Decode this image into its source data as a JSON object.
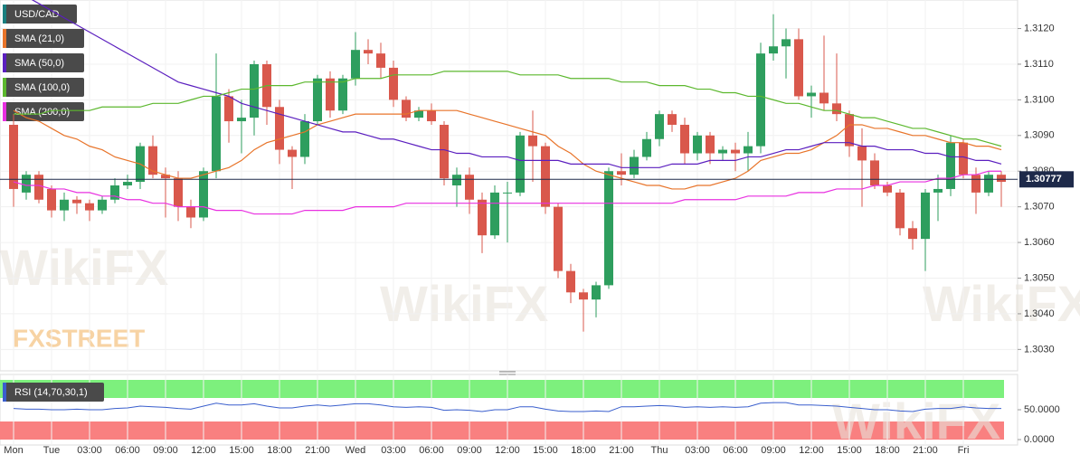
{
  "chart_data": [
    {
      "type": "candlestick",
      "categories": [
        "Mon",
        null,
        null,
        "Tue",
        null,
        null,
        "03:00",
        null,
        null,
        "06:00",
        null,
        null,
        "09:00",
        null,
        null,
        "12:00",
        null,
        null,
        "15:00",
        null,
        null,
        "18:00",
        null,
        null,
        "21:00",
        null,
        null,
        "Wed",
        null,
        null,
        "03:00",
        null,
        null,
        "06:00",
        null,
        null,
        "09:00",
        null,
        null,
        "12:00",
        null,
        null,
        "15:00",
        null,
        null,
        "18:00",
        null,
        null,
        "21:00",
        null,
        null,
        "Thu",
        null,
        null,
        "03:00",
        null,
        null,
        "06:00",
        null,
        null,
        "09:00",
        null,
        null,
        "12:00",
        null,
        null,
        "15:00",
        null,
        null,
        "18:00",
        null,
        null,
        "21:00",
        null,
        null,
        "Fri",
        null,
        null,
        null
      ],
      "candles": {
        "name": "USD/CAD",
        "up_color": "#2e9e5e",
        "down_color": "#d9584c",
        "open": [
          1.3093,
          1.3074,
          1.3079,
          1.3075,
          1.3069,
          1.3072,
          1.3071,
          1.3069,
          1.3072,
          1.3076,
          1.3077,
          1.3087,
          1.3079,
          1.3078,
          1.307,
          1.3067,
          1.308,
          1.3101,
          1.3094,
          1.3095,
          1.311,
          1.3098,
          1.3086,
          1.3084,
          1.3094,
          1.3106,
          1.3097,
          1.3106,
          1.3114,
          1.3113,
          1.3109,
          1.31,
          1.3095,
          1.3097,
          1.3093,
          1.3076,
          1.3079,
          1.3072,
          1.3062,
          1.3074,
          1.3074,
          1.309,
          1.3087,
          1.307,
          1.3052,
          1.3046,
          1.3044,
          1.3048,
          1.308,
          1.3079,
          1.3084,
          1.3089,
          1.3096,
          1.3093,
          1.3085,
          1.309,
          1.3085,
          1.3086,
          1.3085,
          1.3087,
          1.3113,
          1.3115,
          1.3117,
          1.3101,
          1.3102,
          1.3099,
          1.3096,
          1.3087,
          1.3083,
          1.3076,
          1.3074,
          1.3064,
          1.3061,
          1.3074,
          1.3075,
          1.3088,
          1.3079,
          1.3074,
          1.3079
        ],
        "high": [
          1.3096,
          1.308,
          1.308,
          1.3076,
          1.3074,
          1.3073,
          1.3072,
          1.3073,
          1.3078,
          1.3079,
          1.3088,
          1.309,
          1.3081,
          1.308,
          1.3072,
          1.3081,
          1.3113,
          1.3103,
          1.31,
          1.3111,
          1.3111,
          1.31,
          1.3087,
          1.3096,
          1.3107,
          1.3108,
          1.3107,
          1.3119,
          1.3117,
          1.3116,
          1.3111,
          1.3101,
          1.3098,
          1.3099,
          1.3094,
          1.3081,
          1.3081,
          1.3074,
          1.3076,
          1.3077,
          1.3091,
          1.3097,
          1.3088,
          1.3071,
          1.3054,
          1.3047,
          1.3049,
          1.3081,
          1.3085,
          1.3086,
          1.3091,
          1.3097,
          1.3097,
          1.3095,
          1.3091,
          1.3091,
          1.3087,
          1.3088,
          1.3091,
          1.3116,
          1.3124,
          1.312,
          1.312,
          1.3104,
          1.3118,
          1.3113,
          1.3097,
          1.3092,
          1.3085,
          1.3077,
          1.3075,
          1.3066,
          1.3075,
          1.3079,
          1.309,
          1.3089,
          1.3081,
          1.308,
          1.308
        ],
        "low": [
          1.307,
          1.3072,
          1.3071,
          1.3067,
          1.3066,
          1.3068,
          1.3066,
          1.3068,
          1.3071,
          1.3075,
          1.3075,
          1.3078,
          1.3067,
          1.3066,
          1.3064,
          1.3066,
          1.3078,
          1.3088,
          1.3085,
          1.309,
          1.3093,
          1.3082,
          1.3075,
          1.3082,
          1.3093,
          1.3095,
          1.3096,
          1.3104,
          1.311,
          1.3106,
          1.3098,
          1.3094,
          1.3094,
          1.3093,
          1.3076,
          1.307,
          1.3068,
          1.3057,
          1.3061,
          1.306,
          1.3073,
          1.3077,
          1.3068,
          1.305,
          1.3043,
          1.3035,
          1.3039,
          1.3047,
          1.3076,
          1.3078,
          1.3083,
          1.3087,
          1.3091,
          1.3082,
          1.3083,
          1.3082,
          1.3083,
          1.308,
          1.308,
          1.3085,
          1.3111,
          1.3106,
          1.31,
          1.3095,
          1.3097,
          1.3094,
          1.3084,
          1.307,
          1.3075,
          1.3073,
          1.3062,
          1.3058,
          1.3052,
          1.3066,
          1.3073,
          1.3078,
          1.3068,
          1.3073,
          1.307
        ],
        "close": [
          1.3075,
          1.3079,
          1.3072,
          1.3069,
          1.3072,
          1.3071,
          1.3069,
          1.3072,
          1.3076,
          1.3077,
          1.3087,
          1.3079,
          1.3078,
          1.307,
          1.3067,
          1.308,
          1.3101,
          1.3094,
          1.3095,
          1.311,
          1.3098,
          1.3086,
          1.3084,
          1.3094,
          1.3106,
          1.3097,
          1.3106,
          1.3114,
          1.3113,
          1.3109,
          1.31,
          1.3095,
          1.3097,
          1.3094,
          1.3078,
          1.3079,
          1.3072,
          1.3062,
          1.3074,
          1.3074,
          1.309,
          1.3087,
          1.307,
          1.3052,
          1.3046,
          1.3044,
          1.3048,
          1.308,
          1.3079,
          1.3084,
          1.3089,
          1.3096,
          1.3093,
          1.3085,
          1.309,
          1.3085,
          1.3086,
          1.3085,
          1.3087,
          1.3113,
          1.3115,
          1.3117,
          1.3101,
          1.3102,
          1.3099,
          1.3096,
          1.3087,
          1.3083,
          1.3076,
          1.3074,
          1.3064,
          1.3061,
          1.3074,
          1.3075,
          1.3088,
          1.3079,
          1.3074,
          1.3079,
          1.3077
        ]
      },
      "series": [
        {
          "name": "SMA (21,0)",
          "color": "#e8742a",
          "values": [
            1.3097,
            1.3095,
            1.3094,
            1.3092,
            1.309,
            1.3089,
            1.3087,
            1.3086,
            1.3084,
            1.3083,
            1.3082,
            1.308,
            1.3079,
            1.3078,
            1.3078,
            1.3079,
            1.308,
            1.3081,
            1.3083,
            1.3086,
            1.3088,
            1.3089,
            1.309,
            1.3091,
            1.3093,
            1.3094,
            1.3095,
            1.3096,
            1.3096,
            1.3096,
            1.3096,
            1.3096,
            1.3097,
            1.3097,
            1.3097,
            1.3097,
            1.3096,
            1.3095,
            1.3094,
            1.3093,
            1.3092,
            1.3091,
            1.309,
            1.3087,
            1.3085,
            1.3082,
            1.308,
            1.3079,
            1.3078,
            1.3077,
            1.3076,
            1.3076,
            1.3075,
            1.3075,
            1.3076,
            1.3076,
            1.3077,
            1.3078,
            1.308,
            1.3083,
            1.3084,
            1.3085,
            1.3085,
            1.3086,
            1.3088,
            1.309,
            1.3093,
            1.3093,
            1.3092,
            1.3092,
            1.3091,
            1.309,
            1.309,
            1.3089,
            1.3088,
            1.3088,
            1.3087,
            1.3087,
            1.3086
          ]
        },
        {
          "name": "SMA (50,0)",
          "color": "#5b1fbf",
          "values": [
            1.3131,
            1.3129,
            1.3127,
            1.3125,
            1.3123,
            1.3121,
            1.3119,
            1.3117,
            1.3115,
            1.3113,
            1.3111,
            1.3109,
            1.3107,
            1.3105,
            1.3104,
            1.3103,
            1.3102,
            1.3101,
            1.3099,
            1.3098,
            1.3097,
            1.3096,
            1.3095,
            1.3094,
            1.3093,
            1.3092,
            1.3091,
            1.3091,
            1.309,
            1.3089,
            1.3089,
            1.3088,
            1.3087,
            1.3086,
            1.3086,
            1.3085,
            1.3085,
            1.3084,
            1.3084,
            1.3084,
            1.3083,
            1.3083,
            1.3083,
            1.3083,
            1.3082,
            1.3082,
            1.3082,
            1.3082,
            1.3081,
            1.3081,
            1.3081,
            1.3081,
            1.3082,
            1.3082,
            1.3082,
            1.3083,
            1.3083,
            1.3083,
            1.3084,
            1.3084,
            1.3085,
            1.3086,
            1.3086,
            1.3087,
            1.3088,
            1.3088,
            1.3088,
            1.3087,
            1.3087,
            1.3086,
            1.3086,
            1.3086,
            1.3085,
            1.3085,
            1.3084,
            1.3084,
            1.3083,
            1.3083,
            1.3082
          ]
        },
        {
          "name": "SMA (100,0)",
          "color": "#5cb82e",
          "values": [
            1.3096,
            1.3096,
            1.3096,
            1.3097,
            1.3097,
            1.3097,
            1.3097,
            1.3098,
            1.3098,
            1.3098,
            1.3098,
            1.3099,
            1.3099,
            1.3099,
            1.31,
            1.3101,
            1.3101,
            1.3102,
            1.3103,
            1.3103,
            1.3104,
            1.3104,
            1.3104,
            1.3105,
            1.3105,
            1.3105,
            1.3105,
            1.3106,
            1.3106,
            1.3106,
            1.3107,
            1.3107,
            1.3107,
            1.3107,
            1.3108,
            1.3108,
            1.3108,
            1.3108,
            1.3108,
            1.3108,
            1.3107,
            1.3107,
            1.3107,
            1.3107,
            1.3106,
            1.3106,
            1.3106,
            1.3106,
            1.3105,
            1.3105,
            1.3105,
            1.3104,
            1.3104,
            1.3104,
            1.3103,
            1.3103,
            1.3102,
            1.3102,
            1.3101,
            1.3101,
            1.31,
            1.3099,
            1.3099,
            1.3098,
            1.3097,
            1.3097,
            1.3096,
            1.3095,
            1.3095,
            1.3094,
            1.3093,
            1.3092,
            1.3092,
            1.3091,
            1.309,
            1.3089,
            1.3089,
            1.3088,
            1.3087
          ]
        },
        {
          "name": "SMA (200,0)",
          "color": "#e830e0",
          "values": [
            1.3077,
            1.3076,
            1.3076,
            1.3075,
            1.3075,
            1.3074,
            1.3074,
            1.3073,
            1.3073,
            1.3072,
            1.3072,
            1.3071,
            1.3071,
            1.307,
            1.307,
            1.307,
            1.3069,
            1.3069,
            1.3069,
            1.3068,
            1.3068,
            1.3068,
            1.3068,
            1.3069,
            1.3069,
            1.3069,
            1.3069,
            1.307,
            1.307,
            1.307,
            1.307,
            1.3071,
            1.3071,
            1.3071,
            1.3071,
            1.3071,
            1.3071,
            1.3071,
            1.3071,
            1.3071,
            1.3071,
            1.3071,
            1.3071,
            1.3071,
            1.3071,
            1.3071,
            1.3071,
            1.3071,
            1.3071,
            1.3071,
            1.3071,
            1.3071,
            1.3071,
            1.3072,
            1.3072,
            1.3072,
            1.3072,
            1.3072,
            1.3073,
            1.3073,
            1.3073,
            1.3073,
            1.3074,
            1.3074,
            1.3074,
            1.3075,
            1.3075,
            1.3075,
            1.3076,
            1.3076,
            1.3077,
            1.3077,
            1.3077,
            1.3078,
            1.3078,
            1.3079,
            1.3079,
            1.308,
            1.308
          ]
        }
      ],
      "last_price": {
        "value": 1.30777,
        "label": "1.30777",
        "color": "#1e2a4a"
      },
      "ylim": [
        1.3024,
        1.3128
      ],
      "yticks": [
        {
          "value": 1.303,
          "label": "1.3030"
        },
        {
          "value": 1.304,
          "label": "1.3040"
        },
        {
          "value": 1.305,
          "label": "1.3050"
        },
        {
          "value": 1.306,
          "label": "1.3060"
        },
        {
          "value": 1.307,
          "label": "1.3070"
        },
        {
          "value": 1.308,
          "label": "1.3080"
        },
        {
          "value": 1.309,
          "label": "1.3090"
        },
        {
          "value": 1.31,
          "label": "1.3100"
        },
        {
          "value": 1.311,
          "label": "1.3110"
        },
        {
          "value": 1.312,
          "label": "1.3120"
        }
      ],
      "grid": true,
      "watermarks": [
        "WikiFX",
        "FXSTREET"
      ]
    },
    {
      "type": "line",
      "series": [
        {
          "name": "RSI (14,70,30,1)",
          "color": "#3a5fcd",
          "values": [
            52,
            51,
            51,
            50,
            50,
            51,
            50,
            50,
            52,
            53,
            56,
            55,
            54,
            52,
            51,
            56,
            61,
            58,
            58,
            60,
            56,
            53,
            53,
            56,
            58,
            56,
            58,
            60,
            60,
            58,
            55,
            54,
            55,
            54,
            49,
            50,
            49,
            47,
            50,
            50,
            55,
            55,
            51,
            48,
            47,
            47,
            48,
            47,
            55,
            55,
            56,
            57,
            56,
            54,
            55,
            54,
            55,
            54,
            55,
            61,
            62,
            62,
            58,
            58,
            57,
            56,
            54,
            52,
            50,
            50,
            48,
            47,
            51,
            52,
            52,
            55,
            53,
            52,
            52
          ]
        }
      ],
      "ylim": [
        0,
        100
      ],
      "yticks": [
        {
          "value": 50,
          "label": "50.0000"
        },
        {
          "value": 0,
          "label": "0.0000"
        }
      ]
    }
  ]
}
